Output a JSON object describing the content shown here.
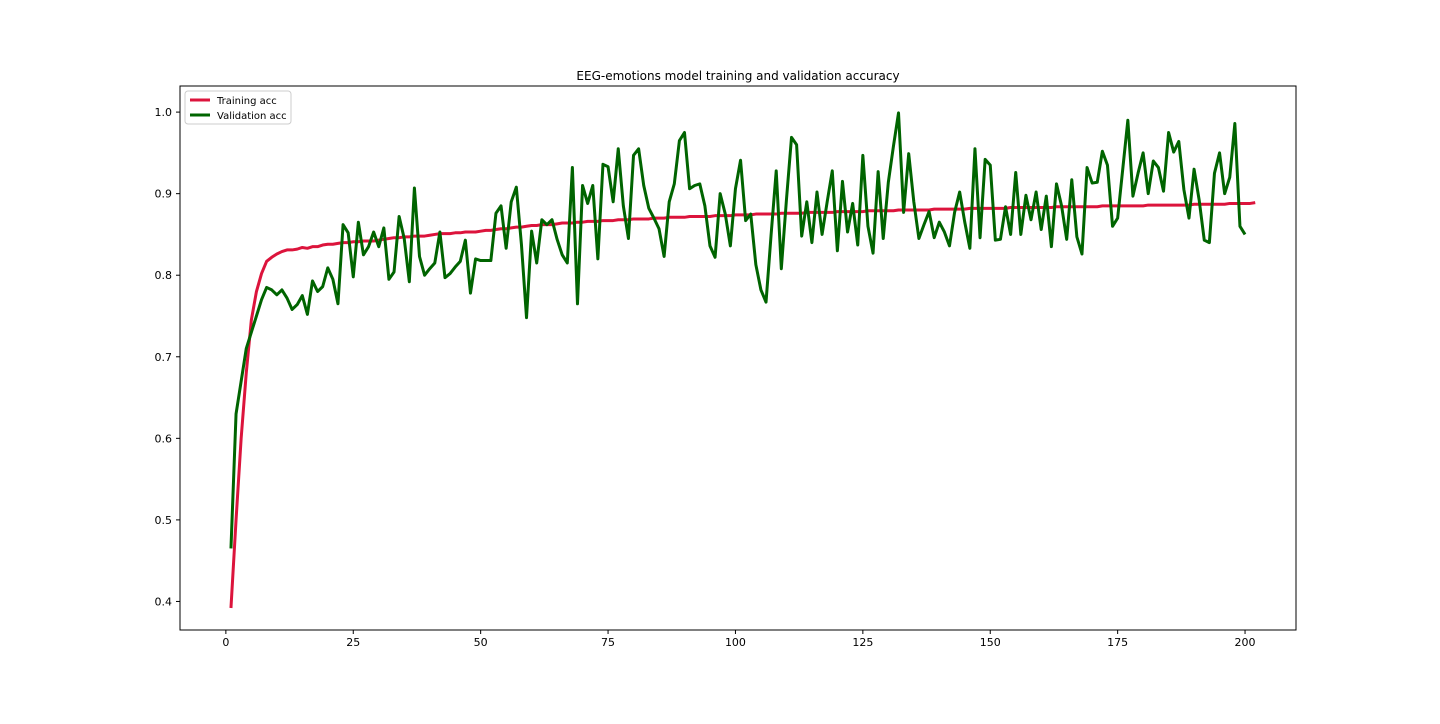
{
  "chart_data": {
    "type": "line",
    "title": "EEG-emotions model training and validation accuracy",
    "xlabel": "",
    "ylabel": "",
    "xlim": [
      -9,
      210
    ],
    "ylim": [
      0.365,
      1.032
    ],
    "xticks": [
      0,
      25,
      50,
      75,
      100,
      125,
      150,
      175,
      200
    ],
    "yticks": [
      0.4,
      0.5,
      0.6,
      0.7,
      0.8,
      0.9,
      1.0
    ],
    "ytick_labels": [
      "0.4",
      "0.5",
      "0.6",
      "0.7",
      "0.8",
      "0.9",
      "1.0"
    ],
    "grid": false,
    "legend_position": "upper-left",
    "series": [
      {
        "name": "Training acc",
        "color": "#dc143c",
        "x_start": 1,
        "values": [
          0.392,
          0.5,
          0.6,
          0.68,
          0.745,
          0.78,
          0.802,
          0.817,
          0.822,
          0.826,
          0.829,
          0.831,
          0.831,
          0.832,
          0.834,
          0.833,
          0.835,
          0.835,
          0.837,
          0.838,
          0.838,
          0.839,
          0.84,
          0.84,
          0.841,
          0.841,
          0.842,
          0.842,
          0.842,
          0.843,
          0.844,
          0.845,
          0.846,
          0.846,
          0.847,
          0.847,
          0.848,
          0.848,
          0.848,
          0.849,
          0.85,
          0.851,
          0.851,
          0.851,
          0.852,
          0.852,
          0.853,
          0.853,
          0.853,
          0.854,
          0.855,
          0.855,
          0.856,
          0.857,
          0.857,
          0.858,
          0.859,
          0.859,
          0.86,
          0.861,
          0.861,
          0.862,
          0.862,
          0.862,
          0.863,
          0.864,
          0.864,
          0.864,
          0.865,
          0.865,
          0.866,
          0.866,
          0.866,
          0.867,
          0.867,
          0.867,
          0.868,
          0.868,
          0.868,
          0.869,
          0.869,
          0.869,
          0.869,
          0.87,
          0.87,
          0.87,
          0.871,
          0.871,
          0.871,
          0.871,
          0.872,
          0.872,
          0.872,
          0.872,
          0.872,
          0.873,
          0.873,
          0.873,
          0.873,
          0.874,
          0.874,
          0.874,
          0.874,
          0.875,
          0.875,
          0.875,
          0.875,
          0.875,
          0.876,
          0.876,
          0.876,
          0.876,
          0.876,
          0.877,
          0.877,
          0.877,
          0.877,
          0.877,
          0.877,
          0.878,
          0.878,
          0.878,
          0.878,
          0.878,
          0.878,
          0.879,
          0.879,
          0.879,
          0.879,
          0.879,
          0.879,
          0.88,
          0.88,
          0.88,
          0.88,
          0.88,
          0.88,
          0.88,
          0.881,
          0.881,
          0.881,
          0.881,
          0.881,
          0.881,
          0.881,
          0.882,
          0.882,
          0.882,
          0.882,
          0.882,
          0.882,
          0.882,
          0.882,
          0.883,
          0.883,
          0.883,
          0.883,
          0.883,
          0.883,
          0.883,
          0.883,
          0.883,
          0.884,
          0.884,
          0.884,
          0.884,
          0.884,
          0.884,
          0.884,
          0.884,
          0.884,
          0.885,
          0.885,
          0.885,
          0.885,
          0.885,
          0.885,
          0.885,
          0.885,
          0.885,
          0.886,
          0.886,
          0.886,
          0.886,
          0.886,
          0.886,
          0.886,
          0.886,
          0.886,
          0.887,
          0.887,
          0.887,
          0.887,
          0.887,
          0.887,
          0.887,
          0.888,
          0.888,
          0.888,
          0.888,
          0.888,
          0.889
        ]
      },
      {
        "name": "Validation acc",
        "color": "#006400",
        "x_start": 1,
        "values": [
          0.465,
          0.63,
          0.67,
          0.71,
          0.73,
          0.75,
          0.77,
          0.785,
          0.782,
          0.776,
          0.782,
          0.772,
          0.758,
          0.764,
          0.775,
          0.752,
          0.793,
          0.78,
          0.786,
          0.809,
          0.795,
          0.765,
          0.862,
          0.852,
          0.798,
          0.865,
          0.825,
          0.835,
          0.853,
          0.835,
          0.858,
          0.795,
          0.804,
          0.872,
          0.845,
          0.792,
          0.907,
          0.823,
          0.8,
          0.808,
          0.815,
          0.853,
          0.797,
          0.802,
          0.81,
          0.817,
          0.843,
          0.778,
          0.82,
          0.818,
          0.818,
          0.818,
          0.876,
          0.885,
          0.833,
          0.89,
          0.908,
          0.838,
          0.748,
          0.854,
          0.815,
          0.868,
          0.862,
          0.868,
          0.844,
          0.825,
          0.815,
          0.932,
          0.765,
          0.91,
          0.888,
          0.91,
          0.82,
          0.936,
          0.933,
          0.89,
          0.955,
          0.885,
          0.845,
          0.947,
          0.955,
          0.91,
          0.882,
          0.87,
          0.857,
          0.823,
          0.89,
          0.912,
          0.965,
          0.975,
          0.906,
          0.91,
          0.912,
          0.885,
          0.836,
          0.822,
          0.9,
          0.875,
          0.836,
          0.906,
          0.941,
          0.867,
          0.875,
          0.813,
          0.782,
          0.767,
          0.85,
          0.928,
          0.808,
          0.892,
          0.969,
          0.96,
          0.848,
          0.89,
          0.84,
          0.902,
          0.85,
          0.89,
          0.928,
          0.83,
          0.915,
          0.853,
          0.888,
          0.837,
          0.947,
          0.86,
          0.827,
          0.927,
          0.845,
          0.914,
          0.958,
          0.999,
          0.877,
          0.949,
          0.89,
          0.845,
          0.862,
          0.878,
          0.846,
          0.865,
          0.853,
          0.836,
          0.877,
          0.902,
          0.865,
          0.833,
          0.955,
          0.846,
          0.942,
          0.935,
          0.843,
          0.844,
          0.884,
          0.85,
          0.926,
          0.85,
          0.898,
          0.868,
          0.902,
          0.856,
          0.897,
          0.835,
          0.912,
          0.885,
          0.844,
          0.917,
          0.847,
          0.826,
          0.932,
          0.913,
          0.914,
          0.952,
          0.935,
          0.86,
          0.87,
          0.93,
          0.99,
          0.897,
          0.925,
          0.95,
          0.9,
          0.94,
          0.932,
          0.903,
          0.975,
          0.951,
          0.964,
          0.905,
          0.87,
          0.93,
          0.892,
          0.843,
          0.84,
          0.925,
          0.95,
          0.9,
          0.92,
          0.986,
          0.86,
          0.85
        ]
      }
    ]
  }
}
